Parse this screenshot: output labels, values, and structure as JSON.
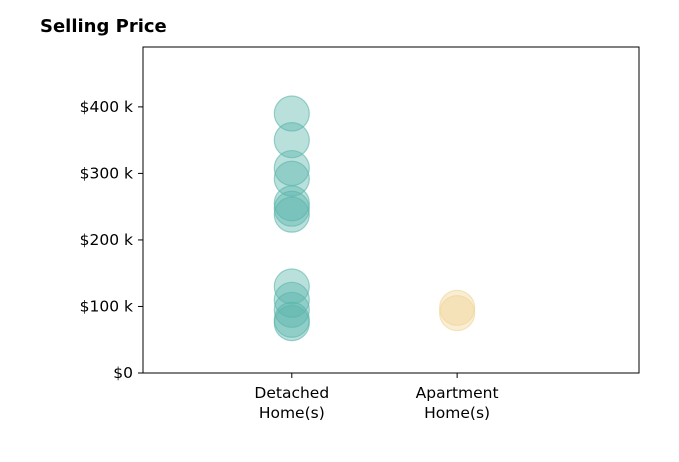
{
  "chart_data": {
    "type": "scatter",
    "title": "Selling Price",
    "xlabel": "",
    "ylabel": "",
    "categories": [
      [
        "Detached",
        "Home(s)"
      ],
      [
        "Apartment",
        "Home(s)"
      ]
    ],
    "y_ticks": [
      0,
      100000,
      200000,
      300000,
      400000
    ],
    "y_tick_labels": [
      "$0",
      "$100 k",
      "$200 k",
      "$300 k",
      "$400 k"
    ],
    "ylim": [
      0,
      490000
    ],
    "xlim": [
      -0.9,
      2.1
    ],
    "grid": false,
    "colors": {
      "Detached": "#5ab4ac",
      "Apartment": "#f0d495"
    },
    "series": [
      {
        "category_index": 0,
        "values": [
          390000,
          350000,
          308000,
          292000,
          255000,
          247000,
          238000,
          130000,
          110000,
          95000,
          80000,
          75000
        ]
      },
      {
        "category_index": 1,
        "values": [
          98000,
          90000
        ]
      }
    ]
  }
}
